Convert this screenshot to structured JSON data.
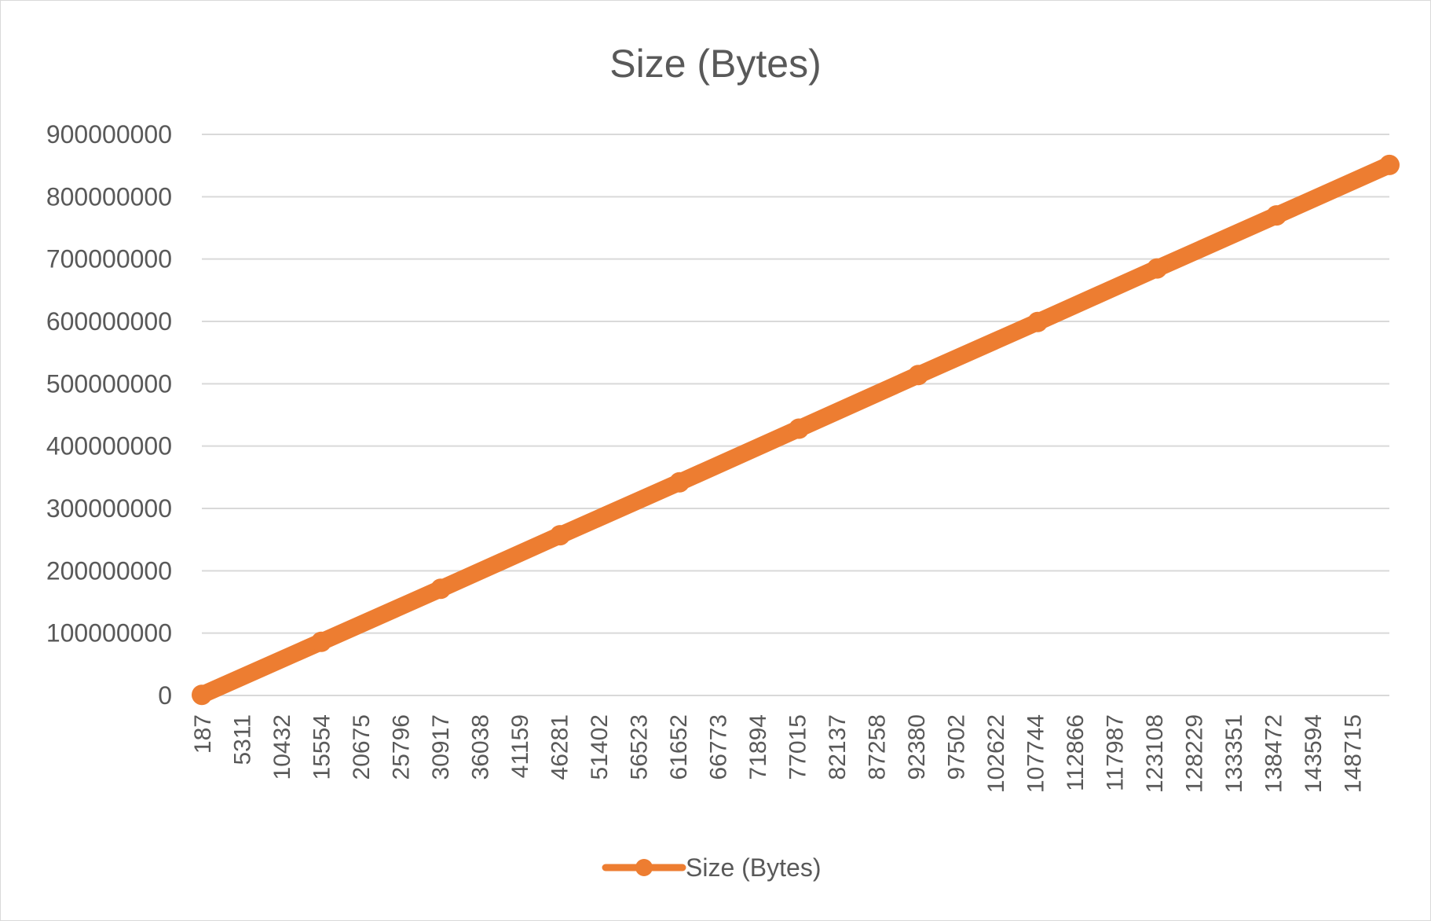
{
  "chart_data": {
    "type": "line",
    "title": "Size (Bytes)",
    "xlabel": "",
    "ylabel": "",
    "ylim": [
      0,
      900000000
    ],
    "yticks": [
      0,
      100000000,
      200000000,
      300000000,
      400000000,
      500000000,
      600000000,
      700000000,
      800000000,
      900000000
    ],
    "ytick_labels": [
      "0",
      "100000000",
      "200000000",
      "300000000",
      "400000000",
      "500000000",
      "600000000",
      "700000000",
      "800000000",
      "900000000"
    ],
    "x_first": 187,
    "x_last": 152999,
    "x_tick_labels": [
      "187",
      "5311",
      "10432",
      "15554",
      "20675",
      "25796",
      "30917",
      "36038",
      "41159",
      "46281",
      "51402",
      "56523",
      "61652",
      "66773",
      "71894",
      "77015",
      "82137",
      "87258",
      "92380",
      "97502",
      "102622",
      "107744",
      "112866",
      "117987",
      "123108",
      "128229",
      "133351",
      "138472",
      "143594",
      "148715"
    ],
    "grid": true,
    "legend_position": "bottom",
    "series": [
      {
        "name": "Size (Bytes)",
        "color": "#ED7D31",
        "x": [
          187,
          15554,
          30917,
          46281,
          61652,
          77015,
          92380,
          107744,
          123108,
          138472,
          152999
        ],
        "values": [
          1000000,
          86000000,
          171000000,
          257000000,
          342000000,
          428000000,
          514000000,
          599000000,
          685000000,
          770000000,
          851000000
        ]
      }
    ]
  }
}
